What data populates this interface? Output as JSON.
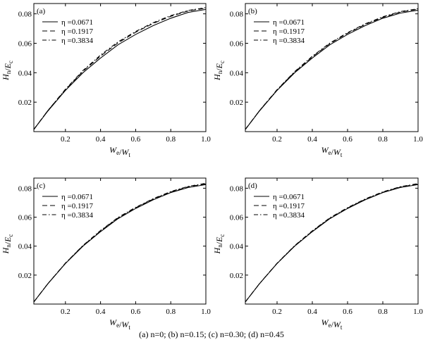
{
  "caption": "(a) n=0; (b) n=0.15; (c) n=0.30; (d) n=0.45",
  "chart_data": [
    {
      "type": "line",
      "panel_label": "(a)",
      "xlabel": "We/Wt",
      "ylabel": "Hn/Ec",
      "xlim": [
        0.02,
        1.0
      ],
      "ylim": [
        0,
        0.087
      ],
      "x_ticks": [
        "0.2",
        "0.4",
        "0.6",
        "0.8",
        "1.0"
      ],
      "y_ticks": [
        "0.02",
        "0.04",
        "0.06",
        "0.08"
      ],
      "grid": false,
      "legend_position": "top-left",
      "x": [
        0.02,
        0.1,
        0.2,
        0.3,
        0.4,
        0.5,
        0.6,
        0.7,
        0.8,
        0.9,
        1.0
      ],
      "series": [
        {
          "name": "η =0.0671",
          "style": "solid",
          "values": [
            0.0015,
            0.014,
            0.028,
            0.04,
            0.05,
            0.059,
            0.066,
            0.072,
            0.077,
            0.081,
            0.083
          ]
        },
        {
          "name": "η =0.1917",
          "style": "dashed",
          "values": [
            0.0015,
            0.0143,
            0.0285,
            0.041,
            0.0513,
            0.0603,
            0.0675,
            0.0735,
            0.0783,
            0.082,
            0.0838
          ]
        },
        {
          "name": "η =0.3834",
          "style": "dashdot",
          "values": [
            0.0015,
            0.0143,
            0.0288,
            0.0415,
            0.052,
            0.061,
            0.068,
            0.074,
            0.0788,
            0.0823,
            0.0842
          ]
        }
      ]
    },
    {
      "type": "line",
      "panel_label": "(b)",
      "xlabel": "We/Wt",
      "ylabel": "Hn/Ec",
      "xlim": [
        0.02,
        1.0
      ],
      "ylim": [
        0,
        0.087
      ],
      "x_ticks": [
        "0.2",
        "0.4",
        "0.6",
        "0.8",
        "1.0"
      ],
      "y_ticks": [
        "0.02",
        "0.04",
        "0.06",
        "0.08"
      ],
      "grid": false,
      "legend_position": "top-left",
      "x": [
        0.02,
        0.1,
        0.2,
        0.3,
        0.4,
        0.5,
        0.6,
        0.7,
        0.8,
        0.9,
        1.0
      ],
      "series": [
        {
          "name": "η =0.0671",
          "style": "solid",
          "values": [
            0.0015,
            0.014,
            0.028,
            0.04,
            0.05,
            0.059,
            0.066,
            0.072,
            0.077,
            0.0805,
            0.0825
          ]
        },
        {
          "name": "η =0.1917",
          "style": "dashed",
          "values": [
            0.0015,
            0.0142,
            0.0283,
            0.0405,
            0.0508,
            0.0598,
            0.0668,
            0.0728,
            0.0776,
            0.0812,
            0.0832
          ]
        },
        {
          "name": "η =0.3834",
          "style": "dashdot",
          "values": [
            0.0015,
            0.0142,
            0.0285,
            0.0408,
            0.0512,
            0.0602,
            0.0672,
            0.0732,
            0.078,
            0.0815,
            0.0835
          ]
        }
      ]
    },
    {
      "type": "line",
      "panel_label": "(c)",
      "xlabel": "We/Wt",
      "ylabel": "Hn/Ec",
      "xlim": [
        0.02,
        1.0
      ],
      "ylim": [
        0,
        0.087
      ],
      "x_ticks": [
        "0.2",
        "0.4",
        "0.6",
        "0.8",
        "1.0"
      ],
      "y_ticks": [
        "0.02",
        "0.04",
        "0.06",
        "0.08"
      ],
      "grid": false,
      "legend_position": "top-left",
      "x": [
        0.02,
        0.1,
        0.2,
        0.3,
        0.4,
        0.5,
        0.6,
        0.7,
        0.8,
        0.9,
        1.0
      ],
      "series": [
        {
          "name": "η =0.0671",
          "style": "solid",
          "values": [
            0.0015,
            0.014,
            0.028,
            0.04,
            0.05,
            0.059,
            0.066,
            0.072,
            0.077,
            0.0805,
            0.0825
          ]
        },
        {
          "name": "η =0.1917",
          "style": "dashed",
          "values": [
            0.0015,
            0.0141,
            0.0282,
            0.0403,
            0.0505,
            0.0595,
            0.0665,
            0.0725,
            0.0774,
            0.081,
            0.083
          ]
        },
        {
          "name": "η =0.3834",
          "style": "dashdot",
          "values": [
            0.0015,
            0.0141,
            0.0283,
            0.0405,
            0.0508,
            0.0598,
            0.0668,
            0.0728,
            0.0777,
            0.0813,
            0.0834
          ]
        }
      ]
    },
    {
      "type": "line",
      "panel_label": "(d)",
      "xlabel": "We/Wt",
      "ylabel": "Hn/Ec",
      "xlim": [
        0.02,
        1.0
      ],
      "ylim": [
        0,
        0.087
      ],
      "x_ticks": [
        "0.2",
        "0.4",
        "0.6",
        "0.8",
        "1.0"
      ],
      "y_ticks": [
        "0.02",
        "0.04",
        "0.06",
        "0.08"
      ],
      "grid": false,
      "legend_position": "top-left",
      "x": [
        0.02,
        0.1,
        0.2,
        0.3,
        0.4,
        0.5,
        0.6,
        0.7,
        0.8,
        0.9,
        1.0
      ],
      "series": [
        {
          "name": "η =0.0671",
          "style": "solid",
          "values": [
            0.0015,
            0.014,
            0.028,
            0.04,
            0.05,
            0.059,
            0.066,
            0.072,
            0.077,
            0.0805,
            0.0825
          ]
        },
        {
          "name": "η =0.1917",
          "style": "dashed",
          "values": [
            0.0015,
            0.014,
            0.0281,
            0.0402,
            0.0503,
            0.0593,
            0.0663,
            0.0723,
            0.0772,
            0.0808,
            0.0829
          ]
        },
        {
          "name": "η =0.3834",
          "style": "dashdot",
          "values": [
            0.0015,
            0.0141,
            0.0282,
            0.0404,
            0.0506,
            0.0596,
            0.0666,
            0.0726,
            0.0775,
            0.0811,
            0.0832
          ]
        }
      ]
    }
  ]
}
